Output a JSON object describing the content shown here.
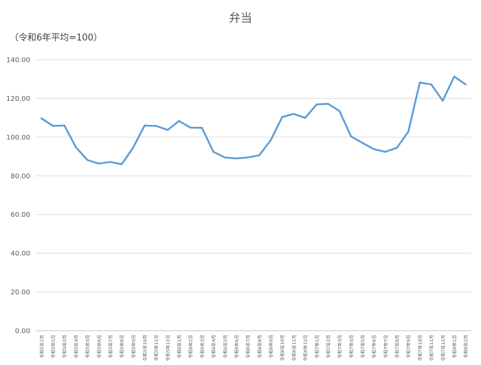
{
  "chart_data": {
    "type": "line",
    "title": "弁当",
    "ylabel": "（令和6年平均=100）",
    "ylim": [
      0,
      140
    ],
    "yticks": [
      "0.00",
      "20.00",
      "40.00",
      "60.00",
      "80.00",
      "100.00",
      "120.00",
      "140.00"
    ],
    "categories": [
      "令和5年1月",
      "令和5年2月",
      "令和5年3月",
      "令和5年4月",
      "令和5年5月",
      "令和5年6月",
      "令和5年7月",
      "令和5年8月",
      "令和5年9月",
      "令和5年10月",
      "令和5年11月",
      "令和5年12月",
      "令和6年1月",
      "令和6年2月",
      "令和6年3月",
      "令和6年4月",
      "令和6年5月",
      "令和6年6月",
      "令和6年7月",
      "令和6年8月",
      "令和6年9月",
      "令和6年10月",
      "令和6年11月",
      "令和6年12月",
      "令和7年1月",
      "令和7年2月",
      "令和7年3月",
      "令和7年4月",
      "令和7年5月",
      "令和7年6月",
      "令和7年7月",
      "令和7年8月",
      "令和7年9月",
      "令和7年10月",
      "令和7年11月",
      "令和7年12月",
      "令和8年1月",
      "令和8年2月"
    ],
    "series": [
      {
        "color": "#5b9bd5",
        "values": [
          109.7,
          105.8,
          106.0,
          94.8,
          88.2,
          86.3,
          87.2,
          86.0,
          94.6,
          106.0,
          105.8,
          103.7,
          108.3,
          104.9,
          104.8,
          92.4,
          89.5,
          89.0,
          89.5,
          90.6,
          98.4,
          110.4,
          112.0,
          109.9,
          116.9,
          117.2,
          113.5,
          100.4,
          97.0,
          93.8,
          92.4,
          94.5,
          102.8,
          128.2,
          127.2,
          118.8,
          131.3,
          127.2
        ]
      }
    ],
    "grid": true,
    "legend": "none"
  }
}
